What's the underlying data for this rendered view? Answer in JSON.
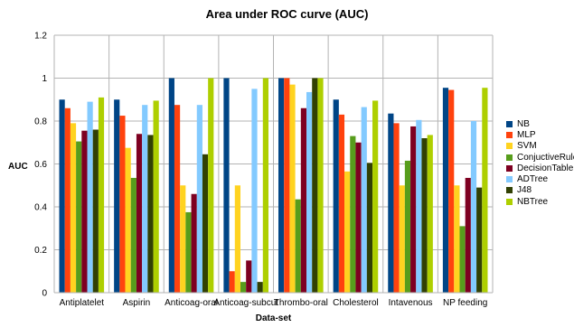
{
  "chart_data": {
    "type": "bar",
    "title": "Area under ROC curve (AUC)",
    "xlabel": "Data-set",
    "ylabel": "AUC",
    "ylim": [
      0,
      1.2
    ],
    "yticks": [
      "0",
      "0.2",
      "0.4",
      "0.6",
      "0.8",
      "1",
      "1.2"
    ],
    "grid": true,
    "legend_position": "right",
    "categories": [
      "Antiplatelet",
      "Aspirin",
      "Anticoag-oral",
      "Anticoag-subcut",
      "Thrombo-oral",
      "Cholesterol",
      "Intavenous",
      "NP feeding"
    ],
    "series": [
      {
        "name": "NB",
        "color": "#004586",
        "values": [
          0.9,
          0.9,
          1.0,
          1.0,
          1.0,
          0.9,
          0.835,
          0.955
        ]
      },
      {
        "name": "MLP",
        "color": "#ff420e",
        "values": [
          0.86,
          0.825,
          0.875,
          0.1,
          1.0,
          0.83,
          0.79,
          0.945
        ]
      },
      {
        "name": "SVM",
        "color": "#ffd320",
        "values": [
          0.79,
          0.675,
          0.5,
          0.5,
          0.97,
          0.565,
          0.5,
          0.5
        ]
      },
      {
        "name": "ConjuctiveRules",
        "color": "#579d1c",
        "values": [
          0.705,
          0.535,
          0.375,
          0.05,
          0.435,
          0.73,
          0.615,
          0.31
        ]
      },
      {
        "name": "DecisionTable",
        "color": "#7e0021",
        "values": [
          0.755,
          0.74,
          0.46,
          0.15,
          0.86,
          0.7,
          0.775,
          0.535
        ]
      },
      {
        "name": "ADTree",
        "color": "#83caff",
        "values": [
          0.89,
          0.875,
          0.875,
          0.95,
          0.935,
          0.865,
          0.805,
          0.8
        ]
      },
      {
        "name": "J48",
        "color": "#314004",
        "values": [
          0.76,
          0.735,
          0.645,
          0.05,
          1.0,
          0.605,
          0.72,
          0.49
        ]
      },
      {
        "name": "NBTree",
        "color": "#aecf00",
        "values": [
          0.91,
          0.895,
          1.0,
          1.0,
          1.0,
          0.895,
          0.735,
          0.955
        ]
      }
    ]
  }
}
